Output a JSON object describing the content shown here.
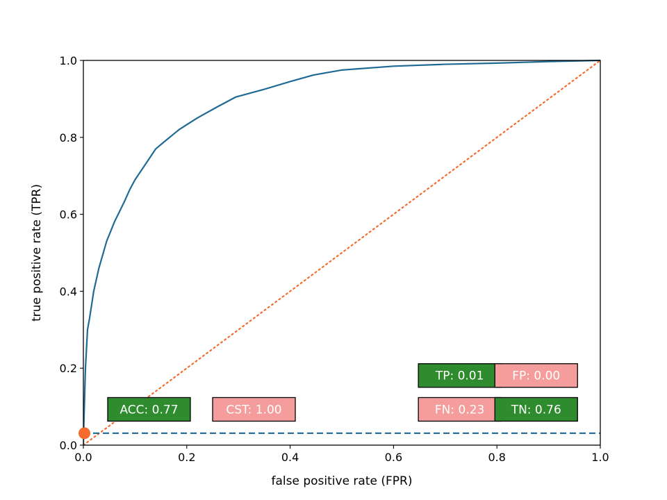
{
  "chart_data": {
    "type": "line",
    "title": "",
    "xlabel": "false positive rate (FPR)",
    "ylabel": "true positive rate (TPR)",
    "xlim": [
      0.0,
      1.0
    ],
    "ylim": [
      0.0,
      1.0
    ],
    "x_ticks": [
      "0.0",
      "0.2",
      "0.4",
      "0.6",
      "0.8",
      "1.0"
    ],
    "y_ticks": [
      "0.0",
      "0.2",
      "0.4",
      "0.6",
      "0.8",
      "1.0"
    ],
    "grid": false,
    "series": [
      {
        "style": "solid",
        "color": "#1f6a94",
        "x": [
          0.0,
          0.001,
          0.004,
          0.008,
          0.012,
          0.02,
          0.03,
          0.045,
          0.06,
          0.08,
          0.09,
          0.1,
          0.12,
          0.14,
          0.155,
          0.185,
          0.22,
          0.26,
          0.295,
          0.35,
          0.4,
          0.445,
          0.5,
          0.6,
          0.7,
          0.8,
          0.9,
          1.0
        ],
        "y": [
          0.0,
          0.06,
          0.2,
          0.3,
          0.33,
          0.4,
          0.46,
          0.53,
          0.58,
          0.635,
          0.665,
          0.69,
          0.73,
          0.77,
          0.787,
          0.82,
          0.85,
          0.88,
          0.905,
          0.925,
          0.945,
          0.962,
          0.975,
          0.985,
          0.99,
          0.993,
          0.997,
          1.0
        ]
      },
      {
        "style": "dotted",
        "color": "#f46b2b",
        "x": [
          0.0,
          1.0
        ],
        "y": [
          0.0,
          1.0
        ]
      },
      {
        "style": "dashed",
        "color": "#1f6a94",
        "x": [
          0.0,
          1.0
        ],
        "y": [
          0.031,
          0.031
        ]
      }
    ],
    "operating_point": {
      "x": 0.002,
      "y": 0.031,
      "color": "#f46b2b"
    },
    "annotations": [
      {
        "text": "ACC: 0.77",
        "x": 0.127,
        "y": 0.093,
        "bg": "#2e8b2e"
      },
      {
        "text": "CST: 1.00",
        "x": 0.33,
        "y": 0.093,
        "bg": "#f59c9c"
      },
      {
        "text": "TP: 0.01",
        "x": 0.728,
        "y": 0.181,
        "bg": "#2e8b2e"
      },
      {
        "text": "FP: 0.00",
        "x": 0.876,
        "y": 0.181,
        "bg": "#f59c9c"
      },
      {
        "text": "FN: 0.23",
        "x": 0.728,
        "y": 0.093,
        "bg": "#f59c9c"
      },
      {
        "text": "TN: 0.76",
        "x": 0.876,
        "y": 0.093,
        "bg": "#2e8b2e"
      }
    ]
  }
}
